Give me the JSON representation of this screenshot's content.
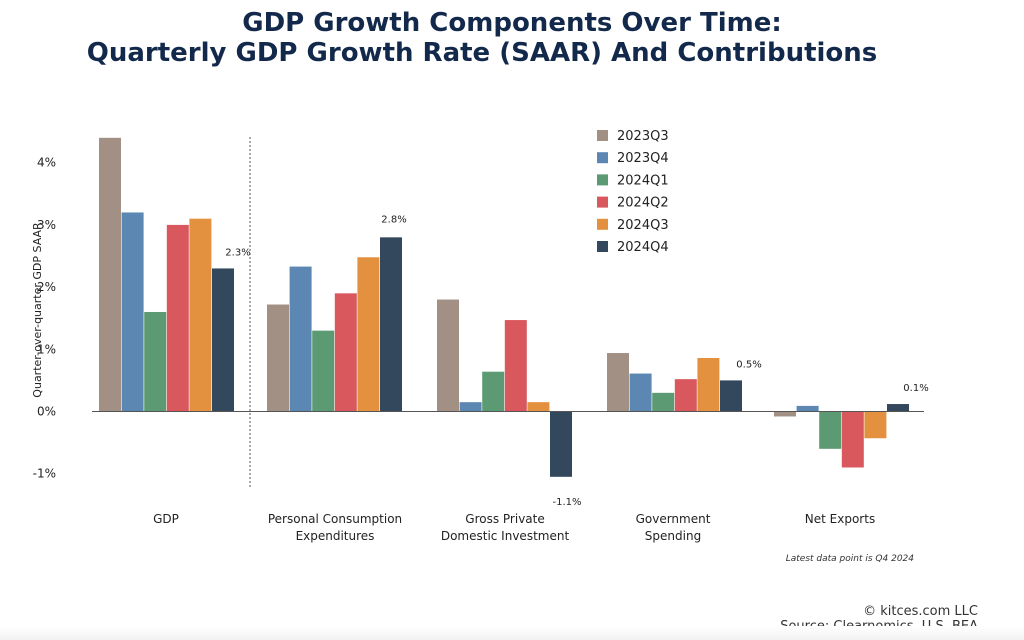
{
  "title_line1": "GDP Growth Components Over Time:",
  "title_line2": "Quarterly GDP Growth Rate (SAAR) And Contributions",
  "footer": {
    "copyright": "© kitces.com LLC",
    "source": "Source: Clearnomics, U.S. BEA"
  },
  "chart_data": {
    "type": "bar",
    "ylabel": "Quarter-over-quarter GDP SAAR",
    "ylim": [
      -1.3,
      4.7
    ],
    "yticks": [
      -1,
      0,
      1,
      2,
      3,
      4
    ],
    "ytick_labels": [
      "-1%",
      "0%",
      "1%",
      "2%",
      "3%",
      "4%"
    ],
    "grid": false,
    "legend_position": "top-right",
    "categories": [
      [
        "GDP"
      ],
      [
        "Personal Consumption",
        "Expenditures"
      ],
      [
        "Gross Private",
        "Domestic Investment"
      ],
      [
        "Government",
        "Spending"
      ],
      [
        "Net Exports"
      ]
    ],
    "series": [
      {
        "name": "2023Q3",
        "color": "#a39084",
        "values": [
          4.4,
          1.72,
          1.8,
          0.94,
          -0.08
        ]
      },
      {
        "name": "2023Q4",
        "color": "#5b87b2",
        "values": [
          3.2,
          2.33,
          0.15,
          0.61,
          0.09
        ]
      },
      {
        "name": "2024Q1",
        "color": "#5c9a74",
        "values": [
          1.6,
          1.3,
          0.64,
          0.3,
          -0.6
        ]
      },
      {
        "name": "2024Q2",
        "color": "#d9585d",
        "values": [
          3.0,
          1.9,
          1.47,
          0.52,
          -0.9
        ]
      },
      {
        "name": "2024Q3",
        "color": "#e3913f",
        "values": [
          3.1,
          2.48,
          0.15,
          0.86,
          -0.43
        ]
      },
      {
        "name": "2024Q4",
        "color": "#33485d",
        "values": [
          2.3,
          2.8,
          -1.05,
          0.5,
          0.12
        ]
      }
    ],
    "data_labels": [
      "2.3%",
      "2.8%",
      "-1.1%",
      "0.5%",
      "0.1%"
    ],
    "annotation": "Latest data point is Q4 2024"
  }
}
